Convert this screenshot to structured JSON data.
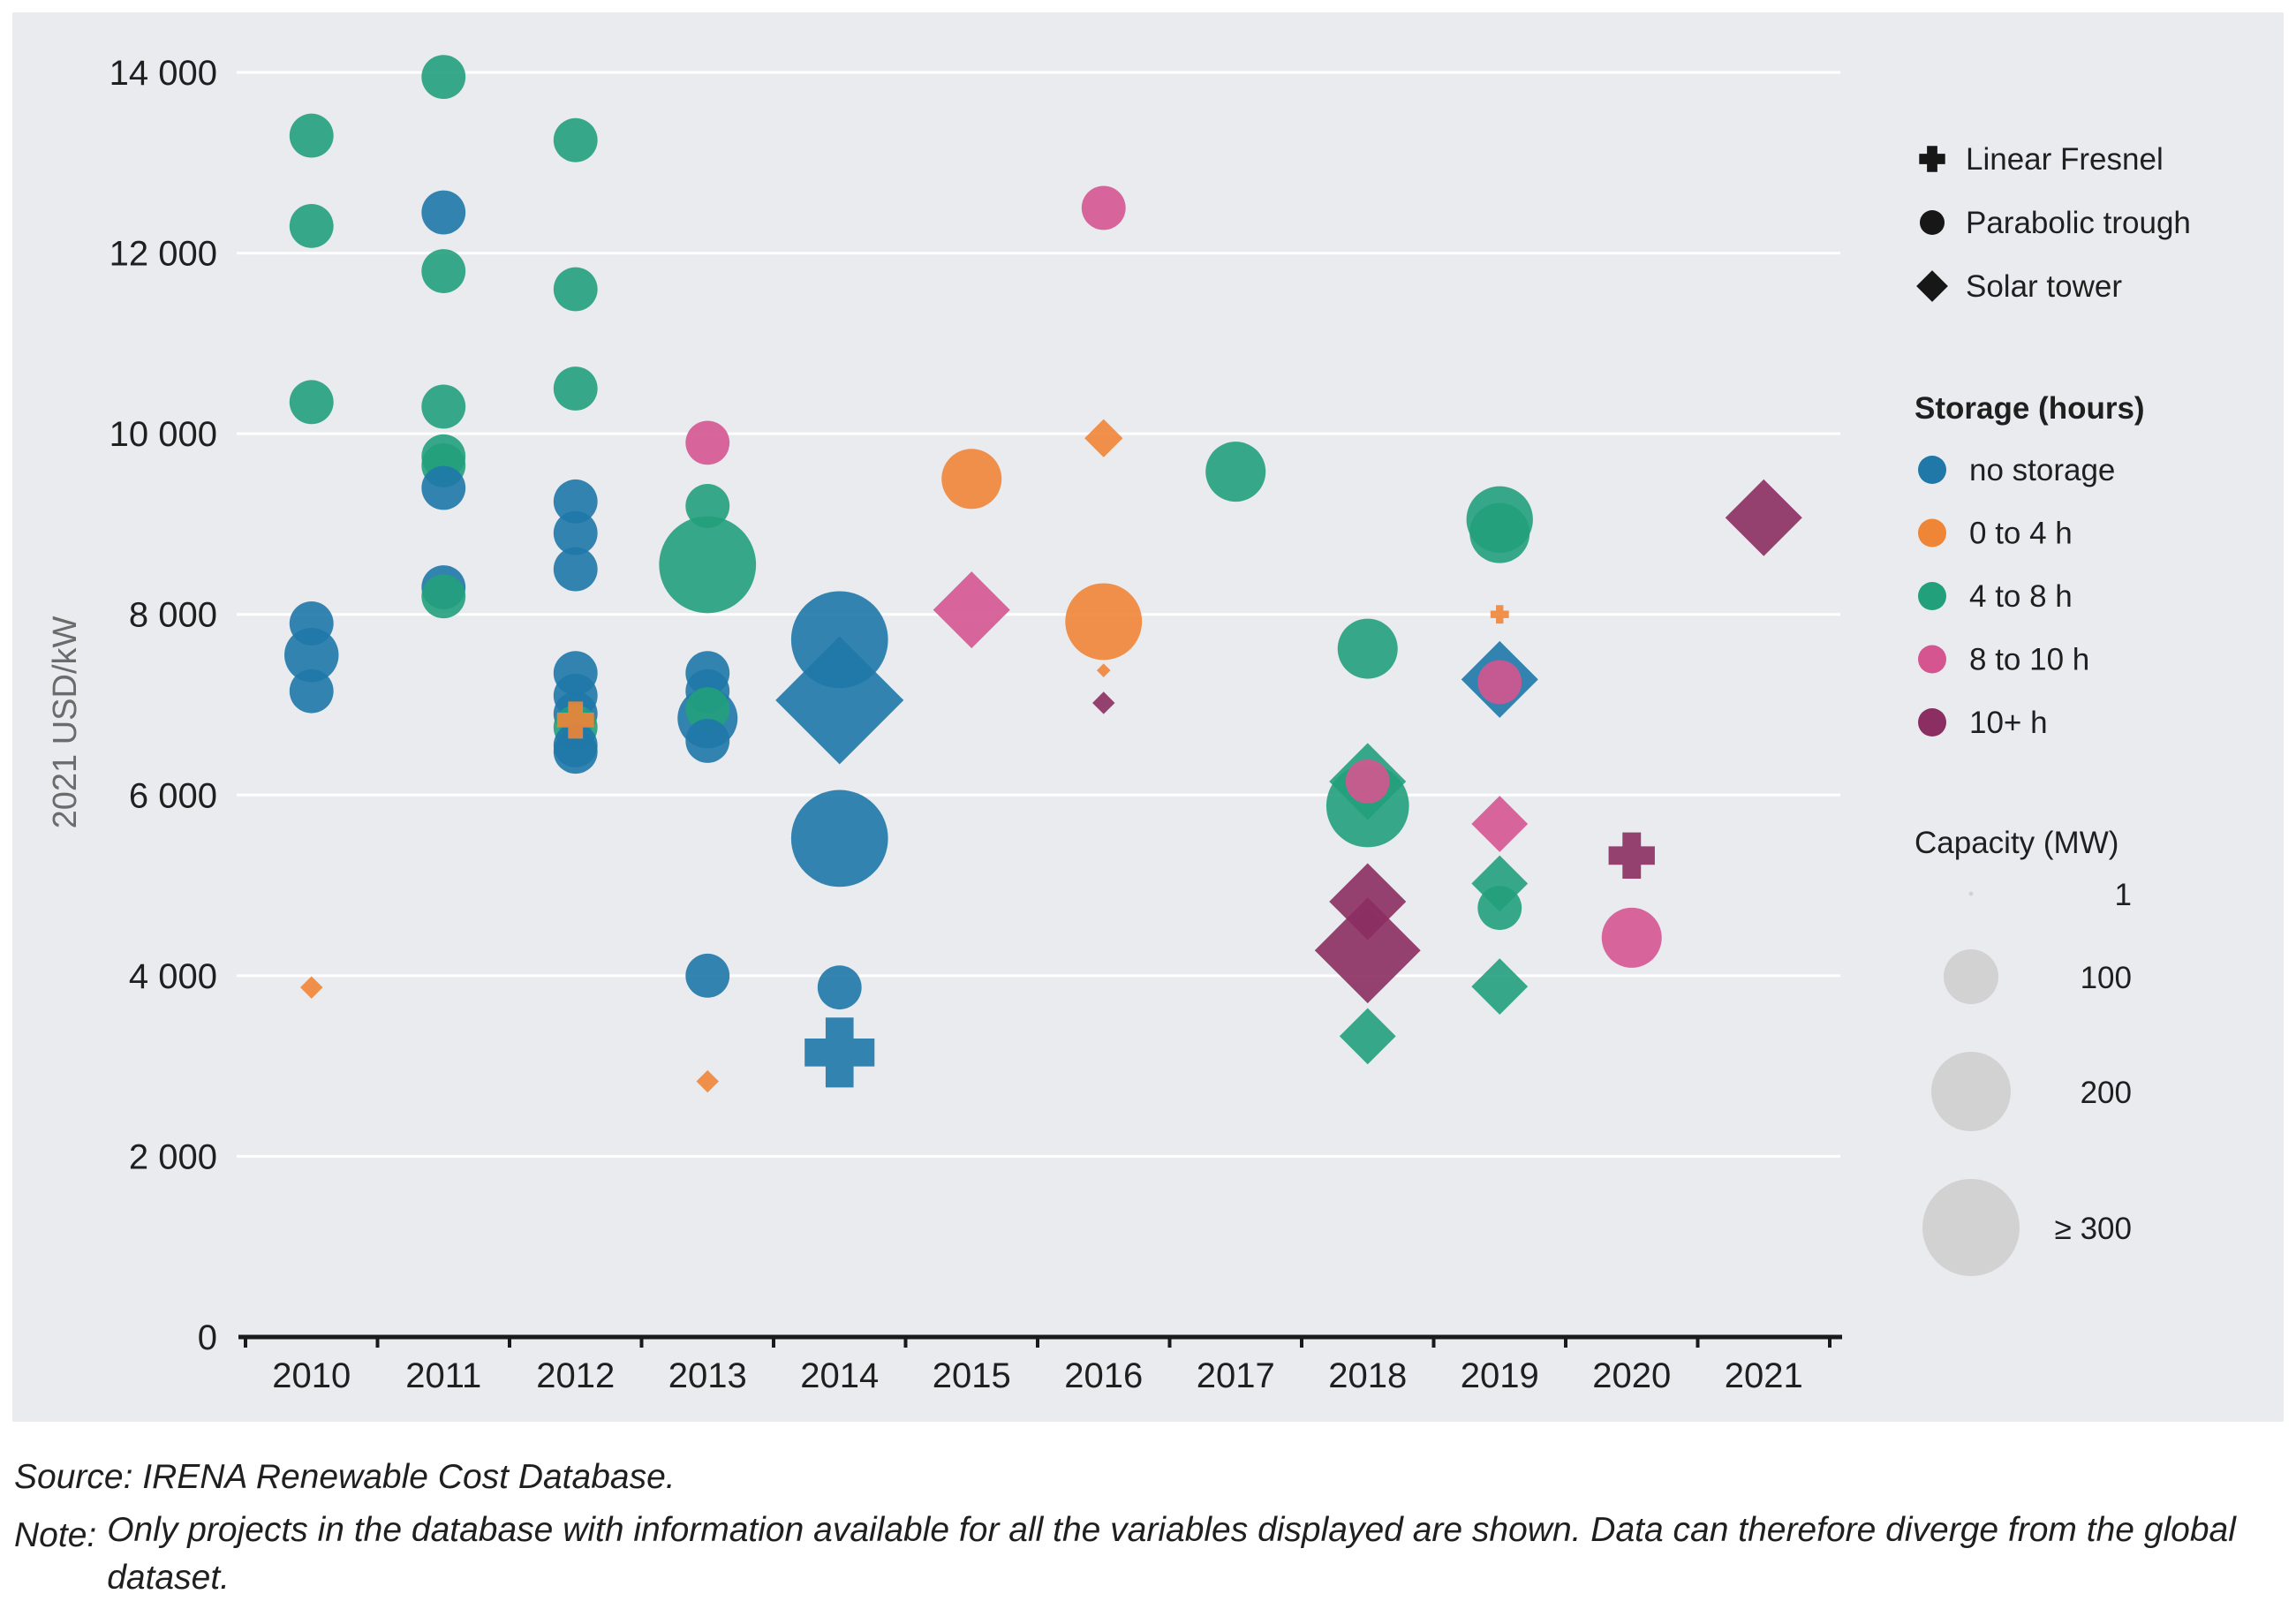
{
  "chart_data": {
    "type": "scatter",
    "ylabel": "2021 USD/kW",
    "ylim": [
      0,
      14000
    ],
    "yticks": [
      0,
      2000,
      4000,
      6000,
      8000,
      10000,
      12000,
      14000
    ],
    "ytick_labels": [
      "0",
      "2 000",
      "4 000",
      "6 000",
      "8 000",
      "10 000",
      "12 000",
      "14 000"
    ],
    "categories": [
      "2010",
      "2011",
      "2012",
      "2013",
      "2014",
      "2015",
      "2016",
      "2017",
      "2018",
      "2019",
      "2020",
      "2021"
    ],
    "grid": true,
    "technology_legend": [
      {
        "shape": "plus",
        "label": "Linear Fresnel"
      },
      {
        "shape": "circle",
        "label": "Parabolic trough"
      },
      {
        "shape": "diamond",
        "label": "Solar tower"
      }
    ],
    "storage_legend_title": "Storage (hours)",
    "storage_legend": [
      {
        "key": "none",
        "label": "no storage",
        "color": "#1f78a8"
      },
      {
        "key": "s0_4",
        "label": "0 to 4 h",
        "color": "#ef8536"
      },
      {
        "key": "s4_8",
        "label": "4 to 8 h",
        "color": "#22a07c"
      },
      {
        "key": "s8_10",
        "label": "8 to 10 h",
        "color": "#d55590"
      },
      {
        "key": "s10p",
        "label": "10+ h",
        "color": "#8b2f62"
      }
    ],
    "capacity_legend_title": "Capacity (MW)",
    "capacity_legend": [
      {
        "mw": 1,
        "label": "1"
      },
      {
        "mw": 100,
        "label": "100"
      },
      {
        "mw": 200,
        "label": "200"
      },
      {
        "mw": 300,
        "label": "≥ 300"
      }
    ],
    "points": [
      {
        "year": 2010,
        "cost": 13300,
        "tech": "trough",
        "storage": "s4_8",
        "mw": 50
      },
      {
        "year": 2010,
        "cost": 12300,
        "tech": "trough",
        "storage": "s4_8",
        "mw": 50
      },
      {
        "year": 2010,
        "cost": 10350,
        "tech": "trough",
        "storage": "s4_8",
        "mw": 50
      },
      {
        "year": 2010,
        "cost": 7900,
        "tech": "trough",
        "storage": "none",
        "mw": 50
      },
      {
        "year": 2010,
        "cost": 7550,
        "tech": "trough",
        "storage": "none",
        "mw": 80
      },
      {
        "year": 2010,
        "cost": 7150,
        "tech": "trough",
        "storage": "none",
        "mw": 50
      },
      {
        "year": 2010,
        "cost": 3870,
        "tech": "tower",
        "storage": "s0_4",
        "mw": 5
      },
      {
        "year": 2011,
        "cost": 13950,
        "tech": "trough",
        "storage": "s4_8",
        "mw": 50
      },
      {
        "year": 2011,
        "cost": 12450,
        "tech": "trough",
        "storage": "none",
        "mw": 50
      },
      {
        "year": 2011,
        "cost": 11800,
        "tech": "trough",
        "storage": "s4_8",
        "mw": 50
      },
      {
        "year": 2011,
        "cost": 10300,
        "tech": "trough",
        "storage": "s4_8",
        "mw": 50
      },
      {
        "year": 2011,
        "cost": 9750,
        "tech": "trough",
        "storage": "s4_8",
        "mw": 50
      },
      {
        "year": 2011,
        "cost": 9650,
        "tech": "trough",
        "storage": "s4_8",
        "mw": 50
      },
      {
        "year": 2011,
        "cost": 9400,
        "tech": "trough",
        "storage": "none",
        "mw": 50
      },
      {
        "year": 2011,
        "cost": 8300,
        "tech": "trough",
        "storage": "none",
        "mw": 50
      },
      {
        "year": 2011,
        "cost": 8200,
        "tech": "trough",
        "storage": "s4_8",
        "mw": 50
      },
      {
        "year": 2012,
        "cost": 13250,
        "tech": "trough",
        "storage": "s4_8",
        "mw": 50
      },
      {
        "year": 2012,
        "cost": 11600,
        "tech": "trough",
        "storage": "s4_8",
        "mw": 50
      },
      {
        "year": 2012,
        "cost": 10500,
        "tech": "trough",
        "storage": "s4_8",
        "mw": 50
      },
      {
        "year": 2012,
        "cost": 9250,
        "tech": "trough",
        "storage": "none",
        "mw": 50
      },
      {
        "year": 2012,
        "cost": 8900,
        "tech": "trough",
        "storage": "none",
        "mw": 50
      },
      {
        "year": 2012,
        "cost": 8500,
        "tech": "trough",
        "storage": "none",
        "mw": 50
      },
      {
        "year": 2012,
        "cost": 7350,
        "tech": "trough",
        "storage": "none",
        "mw": 50
      },
      {
        "year": 2012,
        "cost": 7100,
        "tech": "trough",
        "storage": "none",
        "mw": 50
      },
      {
        "year": 2012,
        "cost": 6900,
        "tech": "trough",
        "storage": "none",
        "mw": 50
      },
      {
        "year": 2012,
        "cost": 6750,
        "tech": "trough",
        "storage": "s4_8",
        "mw": 50
      },
      {
        "year": 2012,
        "cost": 6550,
        "tech": "trough",
        "storage": "none",
        "mw": 50
      },
      {
        "year": 2012,
        "cost": 6480,
        "tech": "trough",
        "storage": "none",
        "mw": 50
      },
      {
        "year": 2012,
        "cost": 6830,
        "tech": "fresnel",
        "storage": "s0_4",
        "mw": 30
      },
      {
        "year": 2013,
        "cost": 9900,
        "tech": "trough",
        "storage": "s8_10",
        "mw": 50
      },
      {
        "year": 2013,
        "cost": 9200,
        "tech": "trough",
        "storage": "s4_8",
        "mw": 50
      },
      {
        "year": 2013,
        "cost": 8550,
        "tech": "trough",
        "storage": "s4_8",
        "mw": 280
      },
      {
        "year": 2013,
        "cost": 7350,
        "tech": "trough",
        "storage": "none",
        "mw": 50
      },
      {
        "year": 2013,
        "cost": 7150,
        "tech": "trough",
        "storage": "none",
        "mw": 50
      },
      {
        "year": 2013,
        "cost": 6950,
        "tech": "trough",
        "storage": "s4_8",
        "mw": 50
      },
      {
        "year": 2013,
        "cost": 6850,
        "tech": "trough",
        "storage": "none",
        "mw": 100
      },
      {
        "year": 2013,
        "cost": 6600,
        "tech": "trough",
        "storage": "none",
        "mw": 50
      },
      {
        "year": 2013,
        "cost": 4000,
        "tech": "trough",
        "storage": "none",
        "mw": 50
      },
      {
        "year": 2013,
        "cost": 2830,
        "tech": "tower",
        "storage": "s0_4",
        "mw": 5
      },
      {
        "year": 2014,
        "cost": 7720,
        "tech": "trough",
        "storage": "none",
        "mw": 280
      },
      {
        "year": 2014,
        "cost": 7050,
        "tech": "tower",
        "storage": "none",
        "mw": 300
      },
      {
        "year": 2014,
        "cost": 5520,
        "tech": "trough",
        "storage": "none",
        "mw": 280
      },
      {
        "year": 2014,
        "cost": 3870,
        "tech": "trough",
        "storage": "none",
        "mw": 50
      },
      {
        "year": 2014,
        "cost": 3150,
        "tech": "fresnel",
        "storage": "none",
        "mw": 125
      },
      {
        "year": 2015,
        "cost": 9500,
        "tech": "trough",
        "storage": "s0_4",
        "mw": 100
      },
      {
        "year": 2015,
        "cost": 8050,
        "tech": "tower",
        "storage": "s8_10",
        "mw": 100
      },
      {
        "year": 2016,
        "cost": 12500,
        "tech": "trough",
        "storage": "s8_10",
        "mw": 50
      },
      {
        "year": 2016,
        "cost": 9950,
        "tech": "tower",
        "storage": "s0_4",
        "mw": 20
      },
      {
        "year": 2016,
        "cost": 7920,
        "tech": "trough",
        "storage": "s0_4",
        "mw": 170
      },
      {
        "year": 2016,
        "cost": 7380,
        "tech": "tower",
        "storage": "s0_4",
        "mw": 1
      },
      {
        "year": 2016,
        "cost": 7020,
        "tech": "tower",
        "storage": "s10p",
        "mw": 5
      },
      {
        "year": 2017,
        "cost": 9580,
        "tech": "trough",
        "storage": "s4_8",
        "mw": 100
      },
      {
        "year": 2018,
        "cost": 7620,
        "tech": "trough",
        "storage": "s4_8",
        "mw": 100
      },
      {
        "year": 2018,
        "cost": 6150,
        "tech": "tower",
        "storage": "s4_8",
        "mw": 100
      },
      {
        "year": 2018,
        "cost": 5880,
        "tech": "trough",
        "storage": "s4_8",
        "mw": 200
      },
      {
        "year": 2018,
        "cost": 6150,
        "tech": "trough",
        "storage": "s8_10",
        "mw": 50
      },
      {
        "year": 2018,
        "cost": 4820,
        "tech": "tower",
        "storage": "s10p",
        "mw": 100
      },
      {
        "year": 2018,
        "cost": 4600,
        "tech": "tower",
        "storage": "s10p",
        "mw": 10
      },
      {
        "year": 2018,
        "cost": 4280,
        "tech": "tower",
        "storage": "s10p",
        "mw": 200
      },
      {
        "year": 2018,
        "cost": 3330,
        "tech": "tower",
        "storage": "s4_8",
        "mw": 50
      },
      {
        "year": 2019,
        "cost": 9050,
        "tech": "trough",
        "storage": "s4_8",
        "mw": 125
      },
      {
        "year": 2019,
        "cost": 8900,
        "tech": "trough",
        "storage": "s4_8",
        "mw": 100
      },
      {
        "year": 2019,
        "cost": 8000,
        "tech": "fresnel",
        "storage": "s0_4",
        "mw": 5
      },
      {
        "year": 2019,
        "cost": 7280,
        "tech": "tower",
        "storage": "none",
        "mw": 100
      },
      {
        "year": 2019,
        "cost": 7250,
        "tech": "trough",
        "storage": "s8_10",
        "mw": 50
      },
      {
        "year": 2019,
        "cost": 5680,
        "tech": "tower",
        "storage": "s8_10",
        "mw": 50
      },
      {
        "year": 2019,
        "cost": 5020,
        "tech": "tower",
        "storage": "s4_8",
        "mw": 50
      },
      {
        "year": 2019,
        "cost": 4750,
        "tech": "trough",
        "storage": "s4_8",
        "mw": 50
      },
      {
        "year": 2019,
        "cost": 3880,
        "tech": "tower",
        "storage": "s4_8",
        "mw": 50
      },
      {
        "year": 2020,
        "cost": 5330,
        "tech": "fresnel",
        "storage": "s10p",
        "mw": 50
      },
      {
        "year": 2020,
        "cost": 4420,
        "tech": "trough",
        "storage": "s8_10",
        "mw": 100
      },
      {
        "year": 2021,
        "cost": 9070,
        "tech": "tower",
        "storage": "s10p",
        "mw": 100
      }
    ]
  },
  "footer": {
    "source": "Source: IRENA Renewable Cost Database.",
    "note_label": "Note:",
    "note_text": "Only projects in the database with information available for all the variables displayed are shown. Data can therefore diverge from the global dataset."
  }
}
